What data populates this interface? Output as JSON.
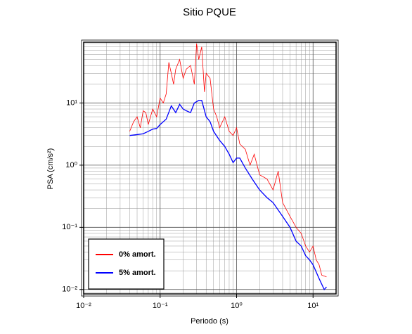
{
  "chart_data": {
    "type": "line",
    "title": "Sitio PQUE",
    "xlabel": "Periodo (s)",
    "ylabel": "PSA (cm/s²)",
    "xscale": "log",
    "yscale": "log",
    "grid": true,
    "legend": "lower left",
    "xlim": [
      0.01,
      20
    ],
    "ylim": [
      0.0085,
      95
    ],
    "xticks": [
      {
        "value": 0.01,
        "label": "10⁻²"
      },
      {
        "value": 0.1,
        "label": "10⁻¹"
      },
      {
        "value": 1,
        "label": "10⁰"
      },
      {
        "value": 10,
        "label": "10¹"
      }
    ],
    "yticks": [
      {
        "value": 0.01,
        "label": "10⁻²"
      },
      {
        "value": 0.1,
        "label": "10⁻¹"
      },
      {
        "value": 1,
        "label": "10⁰"
      },
      {
        "value": 10,
        "label": "10¹"
      }
    ],
    "series": [
      {
        "name": "0% amort.",
        "color": "#ff0000",
        "x": [
          0.04,
          0.045,
          0.05,
          0.055,
          0.06,
          0.065,
          0.07,
          0.08,
          0.09,
          0.1,
          0.11,
          0.12,
          0.13,
          0.14,
          0.15,
          0.16,
          0.18,
          0.2,
          0.22,
          0.25,
          0.28,
          0.3,
          0.32,
          0.35,
          0.38,
          0.4,
          0.45,
          0.5,
          0.55,
          0.6,
          0.7,
          0.8,
          0.9,
          1.0,
          1.1,
          1.3,
          1.5,
          1.7,
          2.0,
          2.5,
          3,
          3.5,
          4,
          5,
          6,
          7,
          8,
          9,
          10,
          11,
          12,
          13,
          15
        ],
        "values": [
          3.5,
          5,
          6,
          4,
          7.5,
          7,
          4.5,
          8,
          6,
          12,
          10,
          14,
          45,
          30,
          20,
          35,
          50,
          25,
          35,
          40,
          20,
          90,
          50,
          80,
          15,
          30,
          25,
          8,
          6,
          4,
          6,
          3.5,
          3,
          4,
          2.2,
          1.8,
          1.0,
          1.5,
          0.7,
          0.6,
          0.4,
          0.8,
          0.25,
          0.15,
          0.1,
          0.08,
          0.05,
          0.04,
          0.05,
          0.03,
          0.025,
          0.017,
          0.016
        ]
      },
      {
        "name": "5% amort.",
        "color": "#0000ff",
        "x": [
          0.04,
          0.05,
          0.06,
          0.07,
          0.08,
          0.09,
          0.1,
          0.12,
          0.14,
          0.16,
          0.18,
          0.2,
          0.22,
          0.25,
          0.28,
          0.32,
          0.35,
          0.4,
          0.45,
          0.5,
          0.6,
          0.7,
          0.8,
          0.9,
          1.0,
          1.1,
          1.3,
          1.6,
          2,
          2.5,
          3,
          4,
          5,
          6,
          7,
          8,
          9,
          10,
          12,
          14,
          15
        ],
        "values": [
          3.0,
          3.1,
          3.2,
          3.5,
          3.8,
          3.9,
          4.5,
          5.5,
          9,
          7,
          9.5,
          8,
          7.5,
          7,
          10,
          11,
          11,
          6,
          5,
          3.5,
          2.5,
          2.0,
          1.5,
          1.1,
          1.3,
          1.3,
          0.9,
          0.6,
          0.4,
          0.3,
          0.25,
          0.15,
          0.1,
          0.06,
          0.05,
          0.035,
          0.03,
          0.025,
          0.015,
          0.01,
          0.011
        ]
      }
    ]
  }
}
